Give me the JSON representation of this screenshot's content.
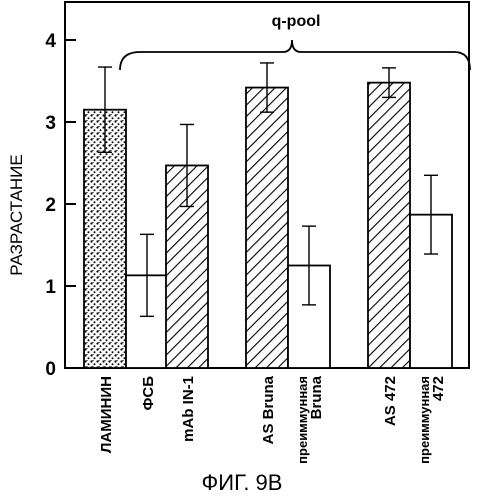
{
  "chart_data": {
    "type": "bar",
    "title": "",
    "ylabel": "РАЗРАСТАНИЕ",
    "xlabel": "",
    "ylim": [
      0,
      4.4
    ],
    "yticks": [
      "0",
      "1",
      "2",
      "3",
      "4"
    ],
    "categories": [
      [
        "ЛАМИНИН"
      ],
      [
        "ФСБ"
      ],
      [
        "mAb IN-1"
      ],
      [
        "AS Bruna"
      ],
      [
        "преиммунная",
        "Bruna"
      ],
      [
        "AS 472"
      ],
      [
        "преиммунная",
        "472"
      ]
    ],
    "values": [
      3.15,
      1.13,
      2.47,
      3.42,
      1.25,
      3.48,
      1.87
    ],
    "errors": [
      0.52,
      0.5,
      0.5,
      0.3,
      0.48,
      0.18,
      0.48
    ],
    "fills": [
      "dots",
      "white",
      "hatch",
      "hatch",
      "white",
      "hatch",
      "white"
    ],
    "bracket_label": "q-pool",
    "figure_caption": "ФИГ. 9В"
  }
}
